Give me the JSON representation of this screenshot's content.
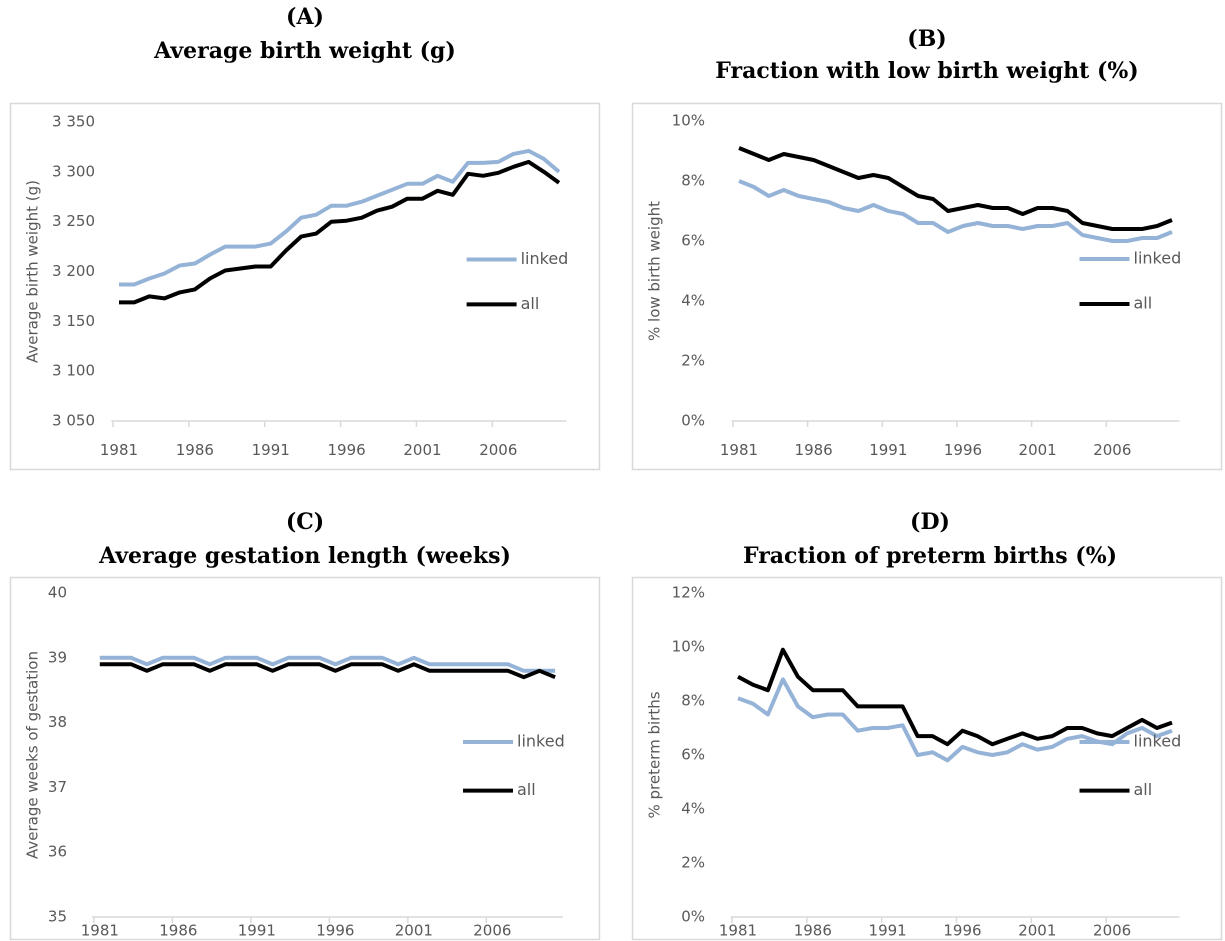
{
  "chart_data": [
    {
      "type": "line",
      "label": "(A)",
      "title": "Average birth weight (g)",
      "ylabel": "Average birth weight (g)",
      "x": [
        1981,
        1982,
        1983,
        1984,
        1985,
        1986,
        1987,
        1988,
        1989,
        1990,
        1991,
        1992,
        1993,
        1994,
        1995,
        1996,
        1997,
        1998,
        1999,
        2000,
        2001,
        2002,
        2003,
        2004,
        2005,
        2006,
        2007,
        2008,
        2009,
        2010
      ],
      "xlim": [
        1980.5,
        2010.5
      ],
      "xticks": [
        1981,
        1986,
        1991,
        1996,
        2001,
        2006
      ],
      "ylim": [
        3050,
        3350
      ],
      "yticks": [
        {
          "value": 3050,
          "label": "3 050"
        },
        {
          "value": 3100,
          "label": "3 100"
        },
        {
          "value": 3150,
          "label": "3 150"
        },
        {
          "value": 3200,
          "label": "3 200"
        },
        {
          "value": 3250,
          "label": "3 250"
        },
        {
          "value": 3300,
          "label": "3 300"
        },
        {
          "value": 3350,
          "label": "3 350"
        }
      ],
      "legend": "right",
      "series": [
        {
          "name": "linked",
          "color": "#95b3d7",
          "values": [
            3187,
            3187,
            3193,
            3198,
            3206,
            3208,
            3217,
            3225,
            3225,
            3225,
            3228,
            3240,
            3254,
            3257,
            3266,
            3266,
            3270,
            3276,
            3282,
            3288,
            3288,
            3296,
            3290,
            3309,
            3309,
            3310,
            3318,
            3321,
            3313,
            3300
          ]
        },
        {
          "name": "all",
          "color": "#000000",
          "values": [
            3169,
            3169,
            3175,
            3173,
            3179,
            3182,
            3193,
            3201,
            3203,
            3205,
            3205,
            3221,
            3235,
            3238,
            3250,
            3251,
            3254,
            3261,
            3265,
            3273,
            3273,
            3281,
            3277,
            3298,
            3296,
            3299,
            3305,
            3310,
            3300,
            3289
          ]
        }
      ]
    },
    {
      "type": "line",
      "label": "(B)",
      "title": "Fraction with low birth weight (%)",
      "ylabel": "% low birth weight",
      "x": [
        1981,
        1982,
        1983,
        1984,
        1985,
        1986,
        1987,
        1988,
        1989,
        1990,
        1991,
        1992,
        1993,
        1994,
        1995,
        1996,
        1997,
        1998,
        1999,
        2000,
        2001,
        2002,
        2003,
        2004,
        2005,
        2006,
        2007,
        2008,
        2009,
        2010
      ],
      "xlim": [
        1980.5,
        2010.5
      ],
      "xticks": [
        1981,
        1986,
        1991,
        1996,
        2001,
        2006
      ],
      "ylim": [
        0,
        10
      ],
      "yticks": [
        {
          "value": 0,
          "label": "0%"
        },
        {
          "value": 2,
          "label": "2%"
        },
        {
          "value": 4,
          "label": "4%"
        },
        {
          "value": 6,
          "label": "6%"
        },
        {
          "value": 8,
          "label": "8%"
        },
        {
          "value": 10,
          "label": "10%"
        }
      ],
      "legend": "right",
      "series": [
        {
          "name": "linked",
          "color": "#95b3d7",
          "values": [
            8.0,
            7.8,
            7.5,
            7.7,
            7.5,
            7.4,
            7.3,
            7.1,
            7.0,
            7.2,
            7.0,
            6.9,
            6.6,
            6.6,
            6.3,
            6.5,
            6.6,
            6.5,
            6.5,
            6.4,
            6.5,
            6.5,
            6.6,
            6.2,
            6.1,
            6.0,
            6.0,
            6.1,
            6.1,
            6.3
          ]
        },
        {
          "name": "all",
          "color": "#000000",
          "values": [
            9.1,
            8.9,
            8.7,
            8.9,
            8.8,
            8.7,
            8.5,
            8.3,
            8.1,
            8.2,
            8.1,
            7.8,
            7.5,
            7.4,
            7.0,
            7.1,
            7.2,
            7.1,
            7.1,
            6.9,
            7.1,
            7.1,
            7.0,
            6.6,
            6.5,
            6.4,
            6.4,
            6.4,
            6.5,
            6.7
          ]
        }
      ]
    },
    {
      "type": "line",
      "label": "(C)",
      "title": "Average gestation length (weeks)",
      "ylabel": "Average weeks of gestation",
      "x": [
        1981,
        1982,
        1983,
        1984,
        1985,
        1986,
        1987,
        1988,
        1989,
        1990,
        1991,
        1992,
        1993,
        1994,
        1995,
        1996,
        1997,
        1998,
        1999,
        2000,
        2001,
        2002,
        2003,
        2004,
        2005,
        2006,
        2007,
        2008,
        2009,
        2010
      ],
      "xlim": [
        1980.5,
        2010.5
      ],
      "xticks": [
        1981,
        1986,
        1991,
        1996,
        2001,
        2006
      ],
      "ylim": [
        35,
        40
      ],
      "yticks": [
        35,
        36,
        37,
        38,
        39,
        40
      ],
      "legend": "right",
      "series": [
        {
          "name": "linked",
          "color": "#95b3d7",
          "values": [
            39.0,
            39.0,
            39.0,
            38.9,
            39.0,
            39.0,
            39.0,
            38.9,
            39.0,
            39.0,
            39.0,
            38.9,
            39.0,
            39.0,
            39.0,
            38.9,
            39.0,
            39.0,
            39.0,
            38.9,
            39.0,
            38.9,
            38.9,
            38.9,
            38.9,
            38.9,
            38.9,
            38.8,
            38.8,
            38.8
          ]
        },
        {
          "name": "all",
          "color": "#000000",
          "values": [
            38.9,
            38.9,
            38.9,
            38.8,
            38.9,
            38.9,
            38.9,
            38.8,
            38.9,
            38.9,
            38.9,
            38.8,
            38.9,
            38.9,
            38.9,
            38.8,
            38.9,
            38.9,
            38.9,
            38.8,
            38.9,
            38.8,
            38.8,
            38.8,
            38.8,
            38.8,
            38.8,
            38.7,
            38.8,
            38.7
          ]
        }
      ]
    },
    {
      "type": "line",
      "label": "(D)",
      "title": "Fraction of preterm births (%)",
      "ylabel": "% preterm births",
      "x": [
        1981,
        1982,
        1983,
        1984,
        1985,
        1986,
        1987,
        1988,
        1989,
        1990,
        1991,
        1992,
        1993,
        1994,
        1995,
        1996,
        1997,
        1998,
        1999,
        2000,
        2001,
        2002,
        2003,
        2004,
        2005,
        2006,
        2007,
        2008,
        2009,
        2010
      ],
      "xlim": [
        1980.5,
        2010.5
      ],
      "xticks": [
        1981,
        1986,
        1991,
        1996,
        2001,
        2006
      ],
      "ylim": [
        0,
        12
      ],
      "yticks": [
        {
          "value": 0,
          "label": "0%"
        },
        {
          "value": 2,
          "label": "2%"
        },
        {
          "value": 4,
          "label": "4%"
        },
        {
          "value": 6,
          "label": "6%"
        },
        {
          "value": 8,
          "label": "8%"
        },
        {
          "value": 10,
          "label": "10%"
        },
        {
          "value": 12,
          "label": "12%"
        }
      ],
      "legend": "right",
      "series": [
        {
          "name": "linked",
          "color": "#95b3d7",
          "values": [
            8.1,
            7.9,
            7.5,
            8.8,
            7.8,
            7.4,
            7.5,
            7.5,
            6.9,
            7.0,
            7.0,
            7.1,
            6.0,
            6.1,
            5.8,
            6.3,
            6.1,
            6.0,
            6.1,
            6.4,
            6.2,
            6.3,
            6.6,
            6.7,
            6.5,
            6.4,
            6.8,
            7.0,
            6.7,
            6.9
          ]
        },
        {
          "name": "all",
          "color": "#000000",
          "values": [
            8.9,
            8.6,
            8.4,
            9.9,
            8.9,
            8.4,
            8.4,
            8.4,
            7.8,
            7.8,
            7.8,
            7.8,
            6.7,
            6.7,
            6.4,
            6.9,
            6.7,
            6.4,
            6.6,
            6.8,
            6.6,
            6.7,
            7.0,
            7.0,
            6.8,
            6.7,
            7.0,
            7.3,
            7.0,
            7.2
          ]
        }
      ]
    }
  ]
}
